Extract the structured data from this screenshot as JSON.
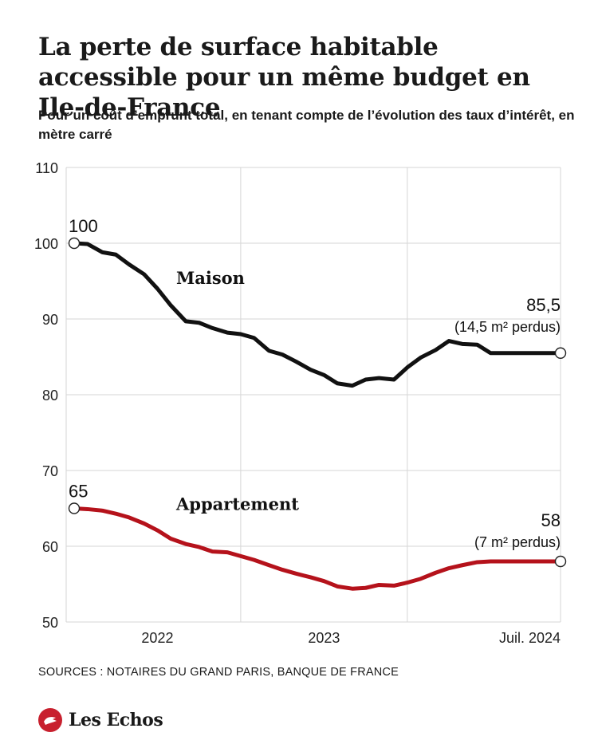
{
  "title": "La perte de surface habitable accessible pour un même budget en Ile-de-France",
  "subtitle": "Pour un coût d’emprunt total, en tenant compte de l’évolution des taux d’intérêt, en mètre carré",
  "sources": "SOURCES :  NOTAIRES DU GRAND PARIS, BANQUE DE FRANCE",
  "brand": "Les Echos",
  "colors": {
    "maison": "#111111",
    "appartement": "#b5121b",
    "grid": "#d6d6d6",
    "brand_red": "#c8202e"
  },
  "chart_data": {
    "type": "line",
    "x": [
      2021.5,
      2021.58,
      2021.67,
      2021.75,
      2021.83,
      2021.92,
      2022.0,
      2022.08,
      2022.17,
      2022.25,
      2022.33,
      2022.42,
      2022.5,
      2022.58,
      2022.67,
      2022.75,
      2022.83,
      2022.92,
      2023.0,
      2023.08,
      2023.17,
      2023.25,
      2023.33,
      2023.42,
      2023.5,
      2023.58,
      2023.67,
      2023.75,
      2023.83,
      2023.92,
      2024.0,
      2024.08,
      2024.17,
      2024.25,
      2024.33,
      2024.42
    ],
    "series": [
      {
        "name": "Maison",
        "values": [
          100,
          99.9,
          98.8,
          98.5,
          97.2,
          95.9,
          94.0,
          91.8,
          89.7,
          89.5,
          88.8,
          88.2,
          88.0,
          87.5,
          85.8,
          85.3,
          84.4,
          83.3,
          82.6,
          81.5,
          81.2,
          82.0,
          82.2,
          82.0,
          83.6,
          84.9,
          85.9,
          87.1,
          86.7,
          86.6,
          85.5,
          85.5,
          85.5,
          85.5,
          85.5,
          85.5
        ]
      },
      {
        "name": "Appartement",
        "values": [
          65,
          64.9,
          64.7,
          64.3,
          63.8,
          63.0,
          62.1,
          61.0,
          60.3,
          59.9,
          59.3,
          59.2,
          58.7,
          58.2,
          57.5,
          56.9,
          56.4,
          55.9,
          55.4,
          54.7,
          54.4,
          54.5,
          54.9,
          54.8,
          55.2,
          55.7,
          56.5,
          57.1,
          57.5,
          57.9,
          58.0,
          58.0,
          58.0,
          58.0,
          58.0,
          58.0
        ]
      }
    ],
    "ylim": [
      50,
      110
    ],
    "yticks": [
      50,
      60,
      70,
      80,
      90,
      100,
      110
    ],
    "xticks": [
      {
        "value": 2022.0,
        "label": "2022"
      },
      {
        "value": 2023.0,
        "label": "2023"
      },
      {
        "value": 2024.42,
        "label": "Juil. 2024"
      }
    ],
    "xgrid": [
      2022.5,
      2023.5
    ],
    "grid": true,
    "annotations": {
      "maison_start": "100",
      "maison_end": "85,5",
      "maison_end_note": "(14,5 m² perdus)",
      "maison_label": "Maison",
      "appart_start": "65",
      "appart_end": "58",
      "appart_end_note": "(7 m² perdus)",
      "appart_label": "Appartement"
    }
  }
}
